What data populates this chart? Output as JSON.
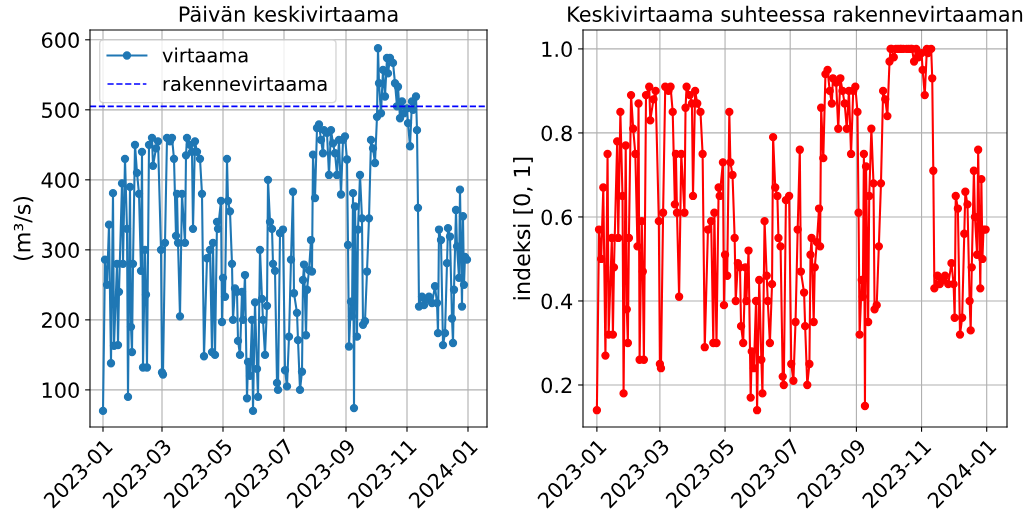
{
  "chart_data": [
    {
      "type": "line",
      "title": "Päivän keskivirtaama",
      "ylabel": "(m³/s)",
      "legend": "top left",
      "grid": true,
      "marker": "circle",
      "line_style": "solid",
      "xlim": [
        "2022-12-19",
        "2024-01-20"
      ],
      "xticks": [
        "2023-01",
        "2023-03",
        "2023-05",
        "2023-07",
        "2023-09",
        "2023-11",
        "2024-01"
      ],
      "ylim": [
        47,
        614
      ],
      "yticks": [
        100,
        200,
        300,
        400,
        500,
        600
      ],
      "ref_lines": [
        {
          "axis": "y",
          "value": 505,
          "label": "rakennevirtaama",
          "color": "#0000ff",
          "line_style": "dashed"
        }
      ],
      "series": [
        {
          "name": "virtaama",
          "color": "#1f77b4",
          "x": [
            "2023-01-01",
            "2023-01-03",
            "2023-01-05",
            "2023-01-07",
            "2023-01-09",
            "2023-01-11",
            "2023-01-12",
            "2023-01-15",
            "2023-01-16",
            "2023-01-17",
            "2023-01-20",
            "2023-01-21",
            "2023-01-23",
            "2023-01-25",
            "2023-01-26",
            "2023-01-28",
            "2023-01-29",
            "2023-01-30",
            "2023-01-31",
            "2023-02-02",
            "2023-02-04",
            "2023-02-06",
            "2023-02-08",
            "2023-02-09",
            "2023-02-10",
            "2023-02-12",
            "2023-02-13",
            "2023-02-14",
            "2023-02-16",
            "2023-02-19",
            "2023-02-20",
            "2023-02-23",
            "2023-02-25",
            "2023-02-28",
            "2023-03-01",
            "2023-03-02",
            "2023-03-04",
            "2023-03-06",
            "2023-03-09",
            "2023-03-11",
            "2023-03-13",
            "2023-03-15",
            "2023-03-16",
            "2023-03-17",
            "2023-03-19",
            "2023-03-21",
            "2023-03-24",
            "2023-03-25",
            "2023-03-26",
            "2023-03-29",
            "2023-03-31",
            "2023-04-01",
            "2023-04-03",
            "2023-04-05",
            "2023-04-08",
            "2023-04-10",
            "2023-04-12",
            "2023-04-15",
            "2023-04-18",
            "2023-04-20",
            "2023-04-21",
            "2023-04-23",
            "2023-04-25",
            "2023-04-26",
            "2023-04-29",
            "2023-04-30",
            "2023-05-01",
            "2023-05-03",
            "2023-05-05",
            "2023-05-06",
            "2023-05-08",
            "2023-05-10",
            "2023-05-11",
            "2023-05-13",
            "2023-05-15",
            "2023-05-16",
            "2023-05-18",
            "2023-05-20",
            "2023-05-21",
            "2023-05-23",
            "2023-05-25",
            "2023-05-26",
            "2023-05-28",
            "2023-05-30",
            "2023-05-31",
            "2023-06-02",
            "2023-06-04",
            "2023-06-05",
            "2023-06-07",
            "2023-06-09",
            "2023-06-10",
            "2023-06-12",
            "2023-06-14",
            "2023-06-15",
            "2023-06-17",
            "2023-06-19",
            "2023-06-20",
            "2023-06-22",
            "2023-06-24",
            "2023-06-25",
            "2023-06-27",
            "2023-06-30",
            "2023-07-02",
            "2023-07-04",
            "2023-07-06",
            "2023-07-08",
            "2023-07-10",
            "2023-07-11",
            "2023-07-14",
            "2023-07-15",
            "2023-07-17",
            "2023-07-19",
            "2023-07-20",
            "2023-07-21",
            "2023-07-23",
            "2023-07-24",
            "2023-07-26",
            "2023-07-28",
            "2023-07-29",
            "2023-07-30",
            "2023-08-01",
            "2023-08-03",
            "2023-08-05",
            "2023-08-07",
            "2023-08-09",
            "2023-08-10",
            "2023-08-13",
            "2023-08-15",
            "2023-08-17",
            "2023-08-19",
            "2023-08-21",
            "2023-08-23",
            "2023-08-25",
            "2023-08-27",
            "2023-08-29",
            "2023-08-31",
            "2023-09-02",
            "2023-09-03",
            "2023-09-04",
            "2023-09-06",
            "2023-09-07",
            "2023-09-08",
            "2023-09-09",
            "2023-09-10",
            "2023-09-12",
            "2023-09-13",
            "2023-09-15",
            "2023-09-17",
            "2023-09-18",
            "2023-09-20",
            "2023-09-22",
            "2023-09-24",
            "2023-09-26",
            "2023-09-28",
            "2023-09-30",
            "2023-10-02",
            "2023-10-03",
            "2023-10-04",
            "2023-10-06",
            "2023-10-08",
            "2023-10-10",
            "2023-10-12",
            "2023-10-13",
            "2023-10-15",
            "2023-10-18",
            "2023-10-20",
            "2023-10-22",
            "2023-10-23",
            "2023-10-25",
            "2023-10-27",
            "2023-10-29",
            "2023-11-01",
            "2023-11-02",
            "2023-11-04",
            "2023-11-06",
            "2023-11-07",
            "2023-11-10",
            "2023-11-11",
            "2023-11-12",
            "2023-11-13",
            "2023-11-16",
            "2023-11-18",
            "2023-11-21",
            "2023-11-23",
            "2023-11-26",
            "2023-11-29",
            "2023-12-01",
            "2023-12-02",
            "2023-12-03",
            "2023-12-05",
            "2023-12-07",
            "2023-12-09",
            "2023-12-11",
            "2023-12-12",
            "2023-12-14",
            "2023-12-16",
            "2023-12-17",
            "2023-12-18",
            "2023-12-20",
            "2023-12-21",
            "2023-12-23",
            "2023-12-24",
            "2023-12-26",
            "2023-12-27",
            "2023-12-28",
            "2023-12-29",
            "2023-12-31"
          ],
          "values": [
            70,
            286,
            250,
            336,
            138,
            381,
            163,
            280,
            164,
            240,
            395,
            280,
            430,
            330,
            90,
            390,
            190,
            154,
            280,
            450,
            410,
            380,
            270,
            440,
            132,
            300,
            236,
            132,
            450,
            460,
            420,
            445,
            455,
            300,
            125,
            122,
            310,
            460,
            455,
            460,
            430,
            320,
            380,
            310,
            205,
            380,
            310,
            435,
            460,
            450,
            440,
            330,
            455,
            440,
            430,
            380,
            148,
            288,
            300,
            154,
            310,
            150,
            340,
            330,
            370,
            197,
            260,
            233,
            430,
            370,
            355,
            280,
            200,
            245,
            240,
            170,
            150,
            240,
            200,
            264,
            88,
            140,
            120,
            200,
            70,
            225,
            130,
            90,
            300,
            230,
            200,
            150,
            220,
            400,
            340,
            330,
            280,
            270,
            110,
            100,
            324,
            329,
            128,
            105,
            176,
            286,
            383,
            238,
            210,
            171,
            100,
            126,
            257,
            279,
            178,
            243,
            271,
            314,
            269,
            436,
            374,
            474,
            479,
            457,
            438,
            471,
            467,
            407,
            471,
            452,
            438,
            407,
            457,
            379,
            457,
            462,
            429,
            307,
            162,
            226,
            205,
            381,
            74,
            362,
            176,
            329,
            407,
            345,
            193,
            198,
            269,
            345,
            457,
            445,
            424,
            490,
            588,
            538,
            495,
            557,
            519,
            574,
            552,
            574,
            567,
            538,
            505,
            533,
            488,
            512,
            495,
            502,
            481,
            448,
            512,
            500,
            519,
            471,
            360,
            219,
            233,
            221,
            229,
            233,
            224,
            248,
            224,
            181,
            329,
            314,
            164,
            181,
            281,
            331,
            319,
            202,
            167,
            243,
            357,
            305,
            260,
            386,
            219,
            348,
            250,
            290,
            286
          ]
        }
      ]
    },
    {
      "type": "line",
      "title": "Keskivirtaama suhteessa rakennevirtaaman",
      "ylabel": "indeksi [0, 1]",
      "grid": true,
      "marker": "circle",
      "line_style": "solid",
      "xlim": [
        "2022-12-19",
        "2024-01-20"
      ],
      "xticks": [
        "2023-01",
        "2023-03",
        "2023-05",
        "2023-07",
        "2023-09",
        "2023-11",
        "2024-01"
      ],
      "ylim": [
        0.1,
        1.045
      ],
      "yticks": [
        0.2,
        0.4,
        0.6,
        0.8,
        {
          "value": 1,
          "label": "1.0"
        }
      ],
      "series": [
        {
          "color": "#ff0000",
          "x": [
            "2023-01-01",
            "2023-01-03",
            "2023-01-05",
            "2023-01-07",
            "2023-01-09",
            "2023-01-11",
            "2023-01-12",
            "2023-01-15",
            "2023-01-16",
            "2023-01-17",
            "2023-01-20",
            "2023-01-21",
            "2023-01-23",
            "2023-01-25",
            "2023-01-26",
            "2023-01-28",
            "2023-01-29",
            "2023-01-30",
            "2023-01-31",
            "2023-02-02",
            "2023-02-04",
            "2023-02-06",
            "2023-02-08",
            "2023-02-09",
            "2023-02-10",
            "2023-02-12",
            "2023-02-13",
            "2023-02-14",
            "2023-02-16",
            "2023-02-19",
            "2023-02-20",
            "2023-02-23",
            "2023-02-25",
            "2023-02-28",
            "2023-03-01",
            "2023-03-02",
            "2023-03-04",
            "2023-03-06",
            "2023-03-09",
            "2023-03-11",
            "2023-03-13",
            "2023-03-15",
            "2023-03-16",
            "2023-03-17",
            "2023-03-19",
            "2023-03-21",
            "2023-03-24",
            "2023-03-25",
            "2023-03-26",
            "2023-03-29",
            "2023-03-31",
            "2023-04-01",
            "2023-04-03",
            "2023-04-05",
            "2023-04-08",
            "2023-04-10",
            "2023-04-12",
            "2023-04-15",
            "2023-04-18",
            "2023-04-20",
            "2023-04-21",
            "2023-04-23",
            "2023-04-25",
            "2023-04-26",
            "2023-04-29",
            "2023-04-30",
            "2023-05-01",
            "2023-05-03",
            "2023-05-05",
            "2023-05-06",
            "2023-05-08",
            "2023-05-10",
            "2023-05-11",
            "2023-05-13",
            "2023-05-15",
            "2023-05-16",
            "2023-05-18",
            "2023-05-20",
            "2023-05-21",
            "2023-05-23",
            "2023-05-25",
            "2023-05-26",
            "2023-05-28",
            "2023-05-30",
            "2023-05-31",
            "2023-06-02",
            "2023-06-04",
            "2023-06-05",
            "2023-06-07",
            "2023-06-09",
            "2023-06-10",
            "2023-06-12",
            "2023-06-14",
            "2023-06-15",
            "2023-06-17",
            "2023-06-19",
            "2023-06-20",
            "2023-06-22",
            "2023-06-24",
            "2023-06-25",
            "2023-06-27",
            "2023-06-30",
            "2023-07-02",
            "2023-07-04",
            "2023-07-06",
            "2023-07-08",
            "2023-07-10",
            "2023-07-11",
            "2023-07-14",
            "2023-07-15",
            "2023-07-17",
            "2023-07-19",
            "2023-07-20",
            "2023-07-21",
            "2023-07-23",
            "2023-07-24",
            "2023-07-26",
            "2023-07-28",
            "2023-07-29",
            "2023-07-30",
            "2023-08-01",
            "2023-08-03",
            "2023-08-05",
            "2023-08-07",
            "2023-08-09",
            "2023-08-10",
            "2023-08-13",
            "2023-08-15",
            "2023-08-17",
            "2023-08-19",
            "2023-08-21",
            "2023-08-23",
            "2023-08-25",
            "2023-08-27",
            "2023-08-29",
            "2023-08-31",
            "2023-09-02",
            "2023-09-03",
            "2023-09-04",
            "2023-09-06",
            "2023-09-07",
            "2023-09-08",
            "2023-09-09",
            "2023-09-10",
            "2023-09-12",
            "2023-09-13",
            "2023-09-15",
            "2023-09-17",
            "2023-09-18",
            "2023-09-20",
            "2023-09-22",
            "2023-09-24",
            "2023-09-26",
            "2023-09-28",
            "2023-09-30",
            "2023-10-02",
            "2023-10-03",
            "2023-10-04",
            "2023-10-06",
            "2023-10-08",
            "2023-10-10",
            "2023-10-12",
            "2023-10-13",
            "2023-10-15",
            "2023-10-18",
            "2023-10-20",
            "2023-10-22",
            "2023-10-23",
            "2023-10-25",
            "2023-10-27",
            "2023-10-29",
            "2023-11-01",
            "2023-11-02",
            "2023-11-04",
            "2023-11-06",
            "2023-11-07",
            "2023-11-10",
            "2023-11-11",
            "2023-11-12",
            "2023-11-13",
            "2023-11-16",
            "2023-11-18",
            "2023-11-21",
            "2023-11-23",
            "2023-11-26",
            "2023-11-29",
            "2023-12-01",
            "2023-12-02",
            "2023-12-03",
            "2023-12-05",
            "2023-12-07",
            "2023-12-09",
            "2023-12-11",
            "2023-12-12",
            "2023-12-14",
            "2023-12-16",
            "2023-12-17",
            "2023-12-18",
            "2023-12-20",
            "2023-12-21",
            "2023-12-23",
            "2023-12-24",
            "2023-12-26",
            "2023-12-27",
            "2023-12-28",
            "2023-12-29",
            "2023-12-31"
          ],
          "values": [
            0.14,
            0.57,
            0.5,
            0.67,
            0.27,
            0.75,
            0.32,
            0.55,
            0.32,
            0.48,
            0.78,
            0.55,
            0.85,
            0.65,
            0.18,
            0.77,
            0.38,
            0.3,
            0.55,
            0.89,
            0.81,
            0.75,
            0.53,
            0.87,
            0.26,
            0.59,
            0.47,
            0.26,
            0.89,
            0.91,
            0.83,
            0.88,
            0.9,
            0.59,
            0.25,
            0.24,
            0.61,
            0.91,
            0.9,
            0.91,
            0.85,
            0.63,
            0.75,
            0.61,
            0.41,
            0.75,
            0.61,
            0.86,
            0.91,
            0.89,
            0.87,
            0.65,
            0.9,
            0.87,
            0.85,
            0.75,
            0.29,
            0.57,
            0.59,
            0.3,
            0.61,
            0.3,
            0.67,
            0.65,
            0.73,
            0.39,
            0.51,
            0.46,
            0.85,
            0.73,
            0.7,
            0.55,
            0.4,
            0.49,
            0.48,
            0.34,
            0.3,
            0.48,
            0.4,
            0.52,
            0.17,
            0.28,
            0.24,
            0.4,
            0.14,
            0.45,
            0.26,
            0.18,
            0.59,
            0.46,
            0.4,
            0.3,
            0.44,
            0.79,
            0.67,
            0.65,
            0.55,
            0.53,
            0.22,
            0.2,
            0.64,
            0.65,
            0.25,
            0.21,
            0.35,
            0.57,
            0.76,
            0.47,
            0.42,
            0.34,
            0.2,
            0.25,
            0.51,
            0.55,
            0.35,
            0.48,
            0.54,
            0.62,
            0.53,
            0.86,
            0.74,
            0.94,
            0.95,
            0.9,
            0.87,
            0.93,
            0.92,
            0.81,
            0.93,
            0.9,
            0.87,
            0.81,
            0.9,
            0.75,
            0.9,
            0.91,
            0.85,
            0.61,
            0.32,
            0.45,
            0.41,
            0.75,
            0.15,
            0.72,
            0.35,
            0.65,
            0.81,
            0.68,
            0.38,
            0.39,
            0.53,
            0.68,
            0.9,
            0.88,
            0.84,
            0.97,
            1,
            1,
            0.98,
            1,
            1,
            1,
            1,
            1,
            1,
            1,
            1,
            1,
            0.97,
            1,
            0.98,
            0.99,
            0.95,
            0.89,
            1,
            0.99,
            1,
            0.93,
            0.71,
            0.43,
            0.46,
            0.44,
            0.45,
            0.46,
            0.44,
            0.49,
            0.44,
            0.36,
            0.65,
            0.62,
            0.32,
            0.36,
            0.56,
            0.66,
            0.63,
            0.4,
            0.33,
            0.48,
            0.71,
            0.6,
            0.51,
            0.76,
            0.43,
            0.69,
            0.5,
            0.57,
            0.57
          ]
        }
      ]
    }
  ]
}
